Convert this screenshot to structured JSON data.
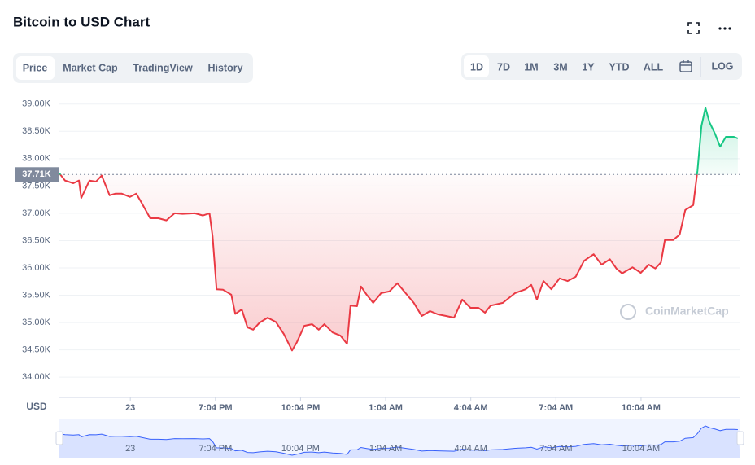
{
  "header": {
    "title": "Bitcoin to USD Chart"
  },
  "tabs": [
    "Price",
    "Market Cap",
    "TradingView",
    "History"
  ],
  "ranges": [
    "1D",
    "7D",
    "1M",
    "3M",
    "1Y",
    "YTD",
    "ALL"
  ],
  "log_button": "LOG",
  "chart_data": {
    "type": "line",
    "currency": "USD",
    "watermark": "CoinMarketCap",
    "reference": {
      "value": 37.71,
      "label": "37.71K"
    },
    "up_color": "#16c784",
    "down_color": "#ea3943",
    "navigator_color": "#3861fb",
    "grid": true,
    "xlim": [
      0,
      24
    ],
    "ylim": [
      33.63,
      39.19
    ],
    "xticks": [
      {
        "value": 2.5,
        "label": "23"
      },
      {
        "value": 5.5,
        "label": "7:04 PM"
      },
      {
        "value": 8.5,
        "label": "10:04 PM"
      },
      {
        "value": 11.5,
        "label": "1:04 AM"
      },
      {
        "value": 14.5,
        "label": "4:04 AM"
      },
      {
        "value": 17.5,
        "label": "7:04 AM"
      },
      {
        "value": 20.5,
        "label": "10:04 AM"
      }
    ],
    "yticks": [
      {
        "value": 34,
        "label": "34.00K"
      },
      {
        "value": 34.5,
        "label": "34.50K"
      },
      {
        "value": 35,
        "label": "35.00K"
      },
      {
        "value": 35.5,
        "label": "35.50K"
      },
      {
        "value": 36,
        "label": "36.00K"
      },
      {
        "value": 36.5,
        "label": "36.50K"
      },
      {
        "value": 37,
        "label": "37.00K"
      },
      {
        "value": 37.5,
        "label": "37.50K"
      },
      {
        "value": 38,
        "label": "38.00K"
      },
      {
        "value": 38.5,
        "label": "38.50K"
      },
      {
        "value": 39,
        "label": "39.00K"
      }
    ],
    "x": [
      0,
      0.2,
      0.49,
      0.69,
      0.77,
      1.06,
      1.29,
      1.49,
      1.77,
      1.97,
      2.2,
      2.49,
      2.71,
      2.91,
      3.2,
      3.49,
      3.77,
      4.06,
      4.34,
      4.77,
      5.06,
      5.29,
      5.4,
      5.54,
      5.77,
      6.06,
      6.2,
      6.43,
      6.63,
      6.83,
      7.06,
      7.34,
      7.63,
      7.91,
      8.2,
      8.37,
      8.63,
      8.91,
      9.14,
      9.34,
      9.63,
      9.91,
      10.14,
      10.26,
      10.49,
      10.63,
      10.83,
      11.06,
      11.34,
      11.63,
      11.91,
      12.2,
      12.49,
      12.77,
      13.06,
      13.34,
      13.63,
      13.91,
      14.2,
      14.49,
      14.77,
      15.0,
      15.2,
      15.63,
      16.06,
      16.43,
      16.63,
      16.83,
      17.06,
      17.34,
      17.63,
      17.91,
      18.2,
      18.49,
      18.83,
      19.11,
      19.4,
      19.63,
      19.83,
      20.2,
      20.49,
      20.77,
      21.0,
      21.2,
      21.34,
      21.63,
      21.86,
      22.06,
      22.34,
      22.49,
      22.63,
      22.77,
      22.91,
      23.11,
      23.29,
      23.49,
      23.77,
      23.91
    ],
    "values": [
      37.73,
      37.6,
      37.55,
      37.6,
      37.28,
      37.6,
      37.58,
      37.69,
      37.33,
      37.36,
      37.36,
      37.3,
      37.36,
      37.18,
      36.91,
      36.91,
      36.87,
      37.0,
      36.99,
      37.0,
      36.96,
      37.0,
      36.58,
      35.61,
      35.6,
      35.51,
      35.16,
      35.24,
      34.91,
      34.87,
      35.0,
      35.09,
      35.01,
      34.79,
      34.49,
      34.64,
      34.94,
      34.97,
      34.87,
      34.97,
      34.82,
      34.76,
      34.61,
      35.31,
      35.3,
      35.66,
      35.51,
      35.36,
      35.54,
      35.57,
      35.72,
      35.54,
      35.36,
      35.12,
      35.21,
      35.15,
      35.12,
      35.09,
      35.42,
      35.27,
      35.27,
      35.18,
      35.31,
      35.36,
      35.54,
      35.61,
      35.69,
      35.42,
      35.76,
      35.61,
      35.81,
      35.76,
      35.84,
      36.13,
      36.25,
      36.06,
      36.16,
      35.99,
      35.9,
      36.01,
      35.91,
      36.06,
      35.99,
      36.1,
      36.51,
      36.51,
      36.61,
      37.06,
      37.15,
      37.78,
      38.6,
      38.93,
      38.67,
      38.45,
      38.22,
      38.4,
      38.4,
      38.37
    ]
  }
}
